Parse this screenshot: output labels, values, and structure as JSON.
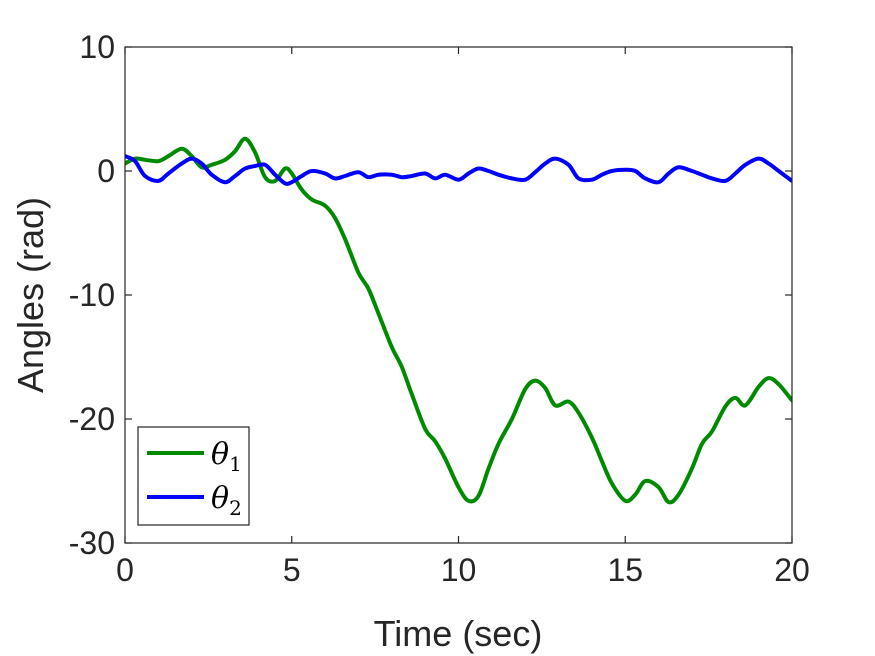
{
  "chart_data": {
    "type": "line",
    "title": "",
    "xlabel": "Time (sec)",
    "ylabel": "Angles (rad)",
    "xlim": [
      0,
      20
    ],
    "ylim": [
      -30,
      10
    ],
    "xticks": [
      0,
      5,
      10,
      15,
      20
    ],
    "yticks": [
      -30,
      -20,
      -10,
      0,
      10
    ],
    "grid": false,
    "legend_position": "bottom-left",
    "series": [
      {
        "name": "θ1",
        "legend_symbol": "θ",
        "legend_subscript": "1",
        "color": "#008a00",
        "x": [
          0,
          0.3,
          0.6,
          1.0,
          1.3,
          1.7,
          2.0,
          2.3,
          2.6,
          3.0,
          3.3,
          3.6,
          3.9,
          4.2,
          4.5,
          4.8,
          5.0,
          5.3,
          5.6,
          6.0,
          6.3,
          6.6,
          7.0,
          7.3,
          7.6,
          8.0,
          8.3,
          8.6,
          9.0,
          9.3,
          9.6,
          10.0,
          10.3,
          10.6,
          10.9,
          11.2,
          11.6,
          12.0,
          12.3,
          12.6,
          12.9,
          13.3,
          13.6,
          14.0,
          14.3,
          14.6,
          15.0,
          15.3,
          15.6,
          16.0,
          16.3,
          16.6,
          17.0,
          17.3,
          17.6,
          18.0,
          18.3,
          18.6,
          19.0,
          19.3,
          19.6,
          20.0
        ],
        "y": [
          0.6,
          1.0,
          0.9,
          0.8,
          1.2,
          1.8,
          1.2,
          0.3,
          0.5,
          0.9,
          1.6,
          2.6,
          1.5,
          -0.5,
          -0.8,
          0.2,
          -0.2,
          -1.5,
          -2.3,
          -2.8,
          -3.8,
          -5.5,
          -8.2,
          -9.5,
          -11.5,
          -14.2,
          -15.8,
          -18.0,
          -20.8,
          -21.8,
          -23.2,
          -25.5,
          -26.6,
          -26.2,
          -24.0,
          -22.0,
          -20.0,
          -17.6,
          -16.9,
          -17.5,
          -18.9,
          -18.6,
          -19.5,
          -21.5,
          -23.4,
          -25.2,
          -26.6,
          -26.1,
          -25.0,
          -25.5,
          -26.7,
          -26.1,
          -24.0,
          -22.0,
          -21.0,
          -19.0,
          -18.3,
          -18.9,
          -17.4,
          -16.7,
          -17.2,
          -18.5
        ]
      },
      {
        "name": "θ2",
        "legend_symbol": "θ",
        "legend_subscript": "2",
        "color": "#0000ff",
        "x": [
          0,
          0.3,
          0.6,
          1.0,
          1.3,
          1.7,
          2.0,
          2.3,
          2.6,
          3.0,
          3.3,
          3.6,
          3.9,
          4.2,
          4.5,
          4.8,
          5.0,
          5.3,
          5.6,
          6.0,
          6.3,
          6.6,
          7.0,
          7.3,
          7.6,
          8.0,
          8.3,
          8.6,
          9.0,
          9.3,
          9.6,
          10.0,
          10.3,
          10.6,
          10.9,
          11.2,
          11.6,
          12.0,
          12.3,
          12.6,
          12.9,
          13.3,
          13.6,
          14.0,
          14.3,
          14.6,
          15.0,
          15.3,
          15.6,
          16.0,
          16.3,
          16.6,
          17.0,
          17.3,
          17.6,
          18.0,
          18.3,
          18.6,
          19.0,
          19.3,
          19.6,
          20.0
        ],
        "y": [
          1.2,
          0.8,
          -0.4,
          -0.8,
          -0.2,
          0.6,
          1.0,
          0.6,
          -0.3,
          -0.9,
          -0.4,
          0.2,
          0.4,
          0.5,
          -0.3,
          -1.0,
          -0.9,
          -0.4,
          0.0,
          -0.2,
          -0.6,
          -0.4,
          -0.1,
          -0.5,
          -0.3,
          -0.3,
          -0.5,
          -0.4,
          -0.2,
          -0.6,
          -0.3,
          -0.7,
          -0.2,
          0.2,
          0.0,
          -0.3,
          -0.6,
          -0.7,
          -0.1,
          0.6,
          1.0,
          0.5,
          -0.6,
          -0.7,
          -0.3,
          0.0,
          0.1,
          0.0,
          -0.6,
          -0.9,
          -0.2,
          0.3,
          0.0,
          -0.3,
          -0.6,
          -0.8,
          -0.2,
          0.5,
          1.0,
          0.6,
          0.0,
          -0.8
        ]
      }
    ]
  }
}
